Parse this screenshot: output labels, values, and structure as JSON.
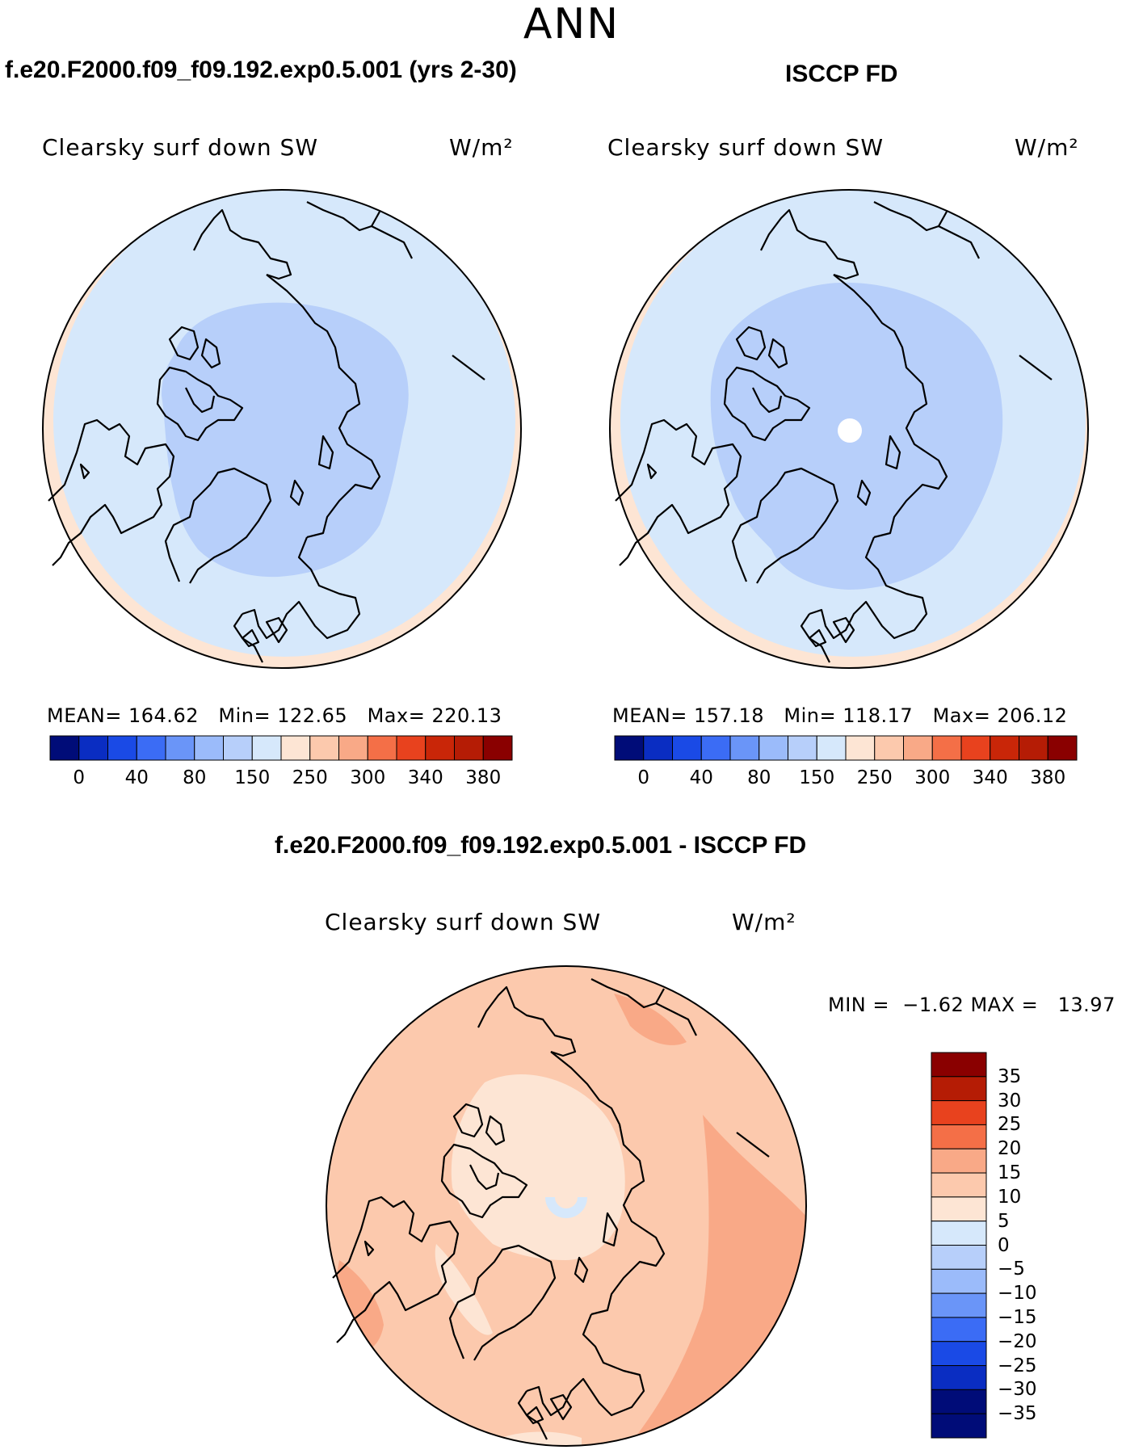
{
  "title": "ANN",
  "panels": [
    {
      "case": "f.e20.F2000.f09_f09.192.exp0.5.001 (yrs 2-30)",
      "field": "Clearsky surf down SW",
      "units": "W/m²",
      "stats": {
        "mean_label": "MEAN=",
        "mean": "164.62",
        "min_label": "Min=",
        "min": "122.65",
        "max_label": "Max=",
        "max": "220.13"
      },
      "background_color": "#d6e8fb",
      "cap_color": "#b7cffa",
      "edge_color": "#fde5d4"
    },
    {
      "case": "ISCCP FD",
      "field": "Clearsky surf down SW",
      "units": "W/m²",
      "stats": {
        "mean_label": "MEAN=",
        "mean": "157.18",
        "min_label": "Min=",
        "min": "118.17",
        "max_label": "Max=",
        "max": "206.12"
      },
      "background_color": "#d6e8fb",
      "cap_color": "#b7cffa",
      "edge_color": "#fde5d4"
    }
  ],
  "diff_panel": {
    "title": "f.e20.F2000.f09_f09.192.exp0.5.001 - ISCCP FD",
    "field": "Clearsky surf down SW",
    "units": "W/m²",
    "minmax": {
      "min_label": "MIN =",
      "min": "−1.62",
      "max_label": "MAX =",
      "max": "13.97"
    },
    "background_color": "#fcc9ad",
    "cap_color": "#fde5d4",
    "warm_color": "#f9a987",
    "pole_ring_color": "#d6e8fb"
  },
  "colorbar": {
    "colors": [
      "#000c78",
      "#0a2dc2",
      "#1a4ae6",
      "#3b6cf5",
      "#6a95f8",
      "#9bbbfa",
      "#b7cffa",
      "#d6e8fb",
      "#fde5d4",
      "#fcc9ad",
      "#f9a987",
      "#f46f47",
      "#e8421e",
      "#c92608",
      "#b51c05",
      "#8a0000"
    ],
    "ticks": [
      "0",
      "40",
      "80",
      "150",
      "250",
      "300",
      "340",
      "380"
    ]
  },
  "diff_colorbar": {
    "colors": [
      "#8a0000",
      "#b51c05",
      "#e8421e",
      "#f46f47",
      "#f9a987",
      "#fcc9ad",
      "#fde5d4",
      "#d6e8fb",
      "#b7cffa",
      "#9bbbfa",
      "#6a95f8",
      "#3b6cf5",
      "#1a4ae6",
      "#0a2dc2",
      "#000c78"
    ],
    "ticks": [
      "35",
      "30",
      "25",
      "20",
      "15",
      "10",
      "5",
      "0",
      "−5",
      "−10",
      "−15",
      "−20",
      "−25",
      "−30",
      "−35"
    ]
  },
  "map": {
    "projection": "north polar stereographic",
    "coastlines": true
  }
}
